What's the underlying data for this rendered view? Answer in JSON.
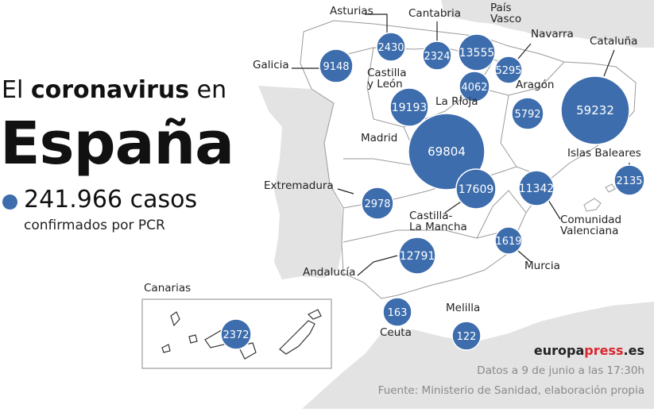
{
  "title": {
    "line1_pre": "El ",
    "line1_bold": "coronavirus",
    "line1_post": " en",
    "line2": "España"
  },
  "cases": {
    "total": "241.966 casos",
    "subtitle": "confirmados por PCR"
  },
  "colors": {
    "bubble": "#3d6dad",
    "bubble_stroke": "#ffffff",
    "land": "#e3e3e3",
    "spain": "#ffffff",
    "border": "#9a9a9a",
    "sea": "#ffffff",
    "dark_text": "#222222",
    "brand_red": "#d9262e"
  },
  "regions": [
    {
      "id": "asturias",
      "label": "Asturias",
      "value": "2430"
    },
    {
      "id": "cantabria",
      "label": "Cantabria",
      "value": "2324"
    },
    {
      "id": "pais-vasco",
      "label": "País\nVasco",
      "value": "13555"
    },
    {
      "id": "navarra",
      "label": "Navarra",
      "value": "5295"
    },
    {
      "id": "cataluna",
      "label": "Cataluña",
      "value": "59232"
    },
    {
      "id": "galicia",
      "label": "Galicia",
      "value": "9148"
    },
    {
      "id": "castilla-y-leon",
      "label": "Castilla\ny León",
      "value": "19193"
    },
    {
      "id": "la-rioja",
      "label": "La Rioja",
      "value": "4062"
    },
    {
      "id": "aragon",
      "label": "Aragón",
      "value": "5792"
    },
    {
      "id": "madrid",
      "label": "Madrid",
      "value": "69804"
    },
    {
      "id": "islas-baleares",
      "label": "Islas Baleares",
      "value": "2135"
    },
    {
      "id": "extremadura",
      "label": "Extremadura",
      "value": "2978"
    },
    {
      "id": "castilla-la-mancha",
      "label": "Castilla-\nLa Mancha",
      "value": "17609"
    },
    {
      "id": "comunidad-valenciana",
      "label": "Comunidad\nValenciana",
      "value": "11342"
    },
    {
      "id": "murcia",
      "label": "Murcia",
      "value": "1619"
    },
    {
      "id": "andalucia",
      "label": "Andalucía",
      "value": "12791"
    },
    {
      "id": "canarias",
      "label": "Canarias",
      "value": "2372"
    },
    {
      "id": "ceuta",
      "label": "Ceuta",
      "value": "163"
    },
    {
      "id": "melilla",
      "label": "Melilla",
      "value": "122"
    }
  ],
  "brand": {
    "part1": "europa",
    "part2": "press",
    "part3": ".es"
  },
  "footer": {
    "date": "Datos a 9 de junio a las 17:30h",
    "source": "Fuente: Ministerio de Sanidad, elaboración propia"
  }
}
